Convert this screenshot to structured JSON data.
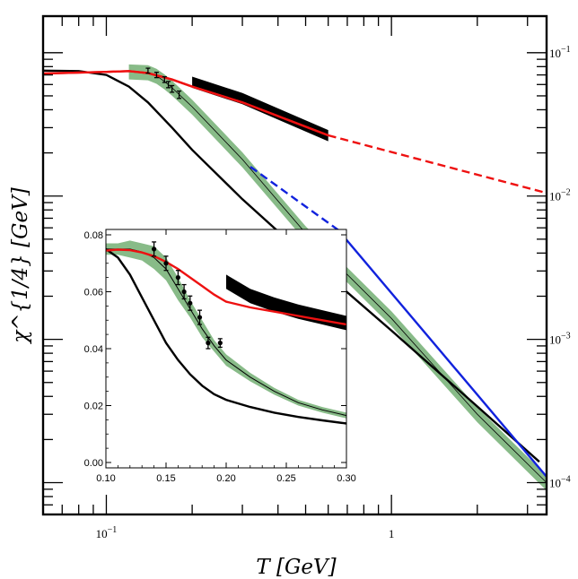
{
  "chart_data": [
    {
      "type": "line",
      "scale": "log-log",
      "xlabel": "T [GeV]",
      "ylabel": "χ^{1/4} [GeV]",
      "xlim": [
        0.06,
        3.5
      ],
      "ylim": [
        6e-05,
        0.18
      ],
      "x_ticks": [
        {
          "value": 0.1,
          "base": "10",
          "exp": "−1"
        },
        {
          "value": 1,
          "label": "1"
        }
      ],
      "y_ticks": [
        {
          "value": 0.1,
          "base": "10",
          "exp": "−1"
        },
        {
          "value": 0.01,
          "base": "10",
          "exp": "−2"
        },
        {
          "value": 0.001,
          "base": "10",
          "exp": "−3"
        },
        {
          "value": 0.0001,
          "base": "10",
          "exp": "−4"
        }
      ],
      "series": [
        {
          "name": "black model curve",
          "color": "#000000",
          "style": "solid",
          "x": [
            0.06,
            0.08,
            0.1,
            0.12,
            0.14,
            0.17,
            0.2,
            0.3,
            0.5,
            1,
            2,
            3.3
          ],
          "y": [
            0.075,
            0.0745,
            0.07,
            0.058,
            0.045,
            0.03,
            0.021,
            0.0095,
            0.0038,
            0.00115,
            0.00034,
            0.00014
          ]
        },
        {
          "name": "green band (central)",
          "color": "#88bb88",
          "style": "band",
          "x": [
            0.12,
            0.14,
            0.15,
            0.16,
            0.17,
            0.2,
            0.3,
            0.5,
            1,
            2,
            3.5
          ],
          "y": [
            0.074,
            0.073,
            0.069,
            0.063,
            0.057,
            0.042,
            0.018,
            0.0055,
            0.0014,
            0.0003,
            0.0001
          ],
          "relative_width": 0.12
        },
        {
          "name": "red curve",
          "color": "#ee1111",
          "style": "solid",
          "x": [
            0.06,
            0.1,
            0.12,
            0.14,
            0.17,
            0.2,
            0.3,
            0.6
          ],
          "y": [
            0.0715,
            0.0735,
            0.0745,
            0.072,
            0.065,
            0.058,
            0.045,
            0.0265
          ]
        },
        {
          "name": "red dashed extrapolation",
          "color": "#ee1111",
          "style": "dashed",
          "x": [
            0.6,
            3.5
          ],
          "y": [
            0.0265,
            0.0105
          ]
        },
        {
          "name": "black band",
          "color": "#000000",
          "style": "band",
          "x": [
            0.2,
            0.3,
            0.6
          ],
          "y": [
            0.0625,
            0.048,
            0.0265
          ],
          "relative_width": 0.09
        },
        {
          "name": "blue dashed",
          "color": "#1122dd",
          "style": "dashed",
          "x": [
            0.32,
            0.65
          ],
          "y": [
            0.016,
            0.0058
          ]
        },
        {
          "name": "blue solid",
          "color": "#1122dd",
          "style": "solid",
          "x": [
            0.65,
            3.5
          ],
          "y": [
            0.0058,
            0.00011
          ]
        }
      ],
      "points": {
        "x": [
          0.14,
          0.15,
          0.16,
          0.165,
          0.17,
          0.18
        ],
        "y": [
          0.075,
          0.07,
          0.065,
          0.06,
          0.056,
          0.051
        ],
        "err": [
          0.003,
          0.003,
          0.003,
          0.003,
          0.003,
          0.003
        ]
      }
    },
    {
      "type": "line",
      "scale": "linear",
      "xlim": [
        0.1,
        0.3
      ],
      "ylim": [
        0,
        0.08
      ],
      "x_ticks": [
        "0.10",
        "0.15",
        "0.20",
        "0.25",
        "0.30"
      ],
      "y_ticks": [
        "0.00",
        "0.02",
        "0.04",
        "0.06",
        "0.08"
      ],
      "series": [
        {
          "name": "black curve",
          "color": "#000000",
          "style": "solid",
          "x": [
            0.1,
            0.11,
            0.12,
            0.13,
            0.14,
            0.15,
            0.16,
            0.17,
            0.18,
            0.19,
            0.2,
            0.22,
            0.24,
            0.26,
            0.28,
            0.3
          ],
          "y": [
            0.075,
            0.072,
            0.066,
            0.058,
            0.05,
            0.042,
            0.036,
            0.031,
            0.027,
            0.024,
            0.022,
            0.0195,
            0.0175,
            0.016,
            0.0148,
            0.0137
          ]
        },
        {
          "name": "green band",
          "color": "#88bb88",
          "style": "band",
          "x": [
            0.1,
            0.11,
            0.12,
            0.13,
            0.14,
            0.15,
            0.16,
            0.17,
            0.18,
            0.19,
            0.2,
            0.22,
            0.24,
            0.26,
            0.28,
            0.3
          ],
          "y": [
            0.075,
            0.075,
            0.075,
            0.074,
            0.072,
            0.068,
            0.061,
            0.054,
            0.047,
            0.041,
            0.036,
            0.03,
            0.025,
            0.021,
            0.0185,
            0.0165
          ],
          "half_width": [
            0.002,
            0.002,
            0.003,
            0.003,
            0.004,
            0.004,
            0.004,
            0.003,
            0.003,
            0.002,
            0.002,
            0.0015,
            0.0012,
            0.001,
            0.001,
            0.001
          ]
        },
        {
          "name": "thin black center",
          "color": "#000000",
          "style": "thin",
          "x": [
            0.1,
            0.11,
            0.12,
            0.13,
            0.14,
            0.15,
            0.16,
            0.17,
            0.18,
            0.19,
            0.2,
            0.22,
            0.24,
            0.26,
            0.28,
            0.3
          ],
          "y": [
            0.075,
            0.075,
            0.075,
            0.074,
            0.072,
            0.068,
            0.061,
            0.054,
            0.047,
            0.041,
            0.036,
            0.03,
            0.025,
            0.021,
            0.0185,
            0.0165
          ]
        },
        {
          "name": "red curve",
          "color": "#ee1111",
          "style": "solid",
          "x": [
            0.1,
            0.11,
            0.12,
            0.13,
            0.14,
            0.15,
            0.16,
            0.17,
            0.18,
            0.19,
            0.2,
            0.22,
            0.24,
            0.26,
            0.28,
            0.3
          ],
          "y": [
            0.0745,
            0.0748,
            0.0746,
            0.0738,
            0.0725,
            0.0705,
            0.068,
            0.065,
            0.062,
            0.059,
            0.0565,
            0.0545,
            0.053,
            0.0515,
            0.05,
            0.0485
          ]
        },
        {
          "name": "black band",
          "color": "#000000",
          "style": "band",
          "x": [
            0.2,
            0.22,
            0.24,
            0.26,
            0.28,
            0.3
          ],
          "y": [
            0.0635,
            0.0585,
            0.0555,
            0.053,
            0.051,
            0.049
          ],
          "half_width": [
            0.0025,
            0.0025,
            0.0025,
            0.0025,
            0.0025,
            0.0025
          ]
        }
      ],
      "points": {
        "x": [
          0.14,
          0.15,
          0.16,
          0.165,
          0.17,
          0.178,
          0.185,
          0.195
        ],
        "y": [
          0.075,
          0.07,
          0.065,
          0.06,
          0.056,
          0.051,
          0.042,
          0.042
        ],
        "err": [
          0.0025,
          0.0025,
          0.0025,
          0.0025,
          0.0025,
          0.0025,
          0.002,
          0.0015
        ]
      }
    }
  ]
}
